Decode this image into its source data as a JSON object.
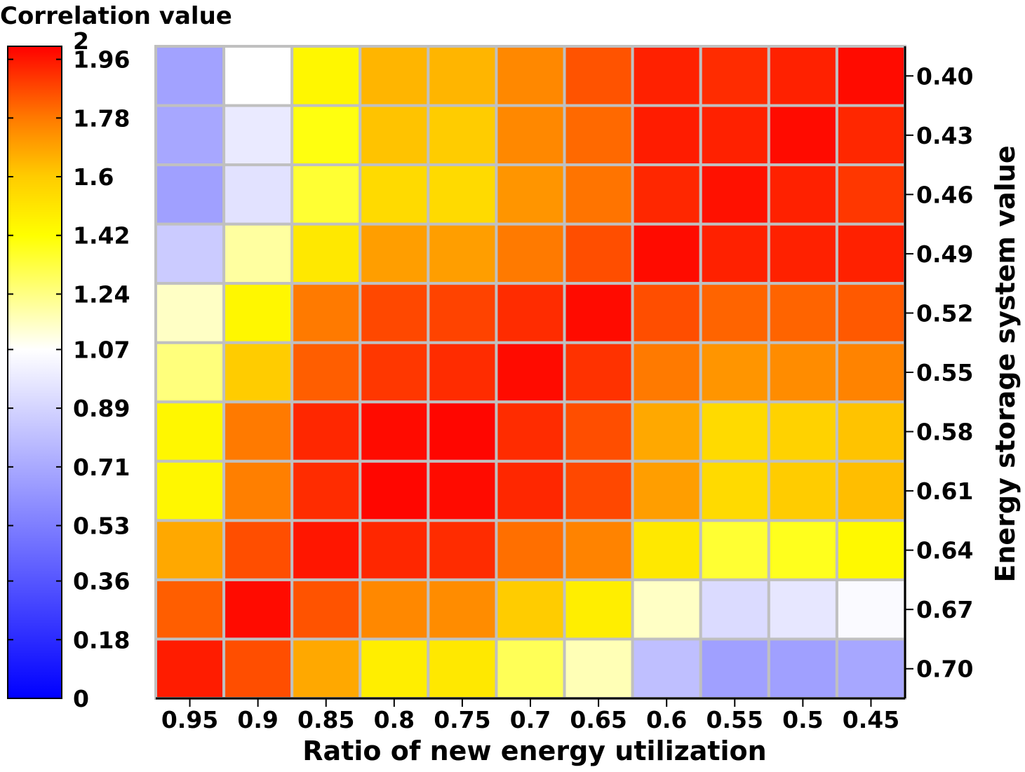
{
  "chart_data": {
    "type": "heatmap",
    "title": "",
    "colorbar_title": "Correlation value",
    "xlabel": "Ratio of new energy utilization",
    "ylabel": "Energy storage system value",
    "x_categories": [
      "0.95",
      "0.9",
      "0.85",
      "0.8",
      "0.75",
      "0.7",
      "0.65",
      "0.6",
      "0.55",
      "0.5",
      "0.45"
    ],
    "y_categories": [
      "0.40",
      "0.43",
      "0.46",
      "0.49",
      "0.52",
      "0.55",
      "0.58",
      "0.61",
      "0.64",
      "0.67",
      "0.70"
    ],
    "values": [
      [
        0.68,
        1.07,
        1.45,
        1.65,
        1.65,
        1.75,
        1.85,
        1.94,
        1.92,
        1.94,
        1.98
      ],
      [
        0.7,
        0.98,
        1.4,
        1.62,
        1.6,
        1.75,
        1.81,
        1.95,
        1.94,
        1.98,
        1.93
      ],
      [
        0.67,
        0.95,
        1.35,
        1.55,
        1.55,
        1.72,
        1.79,
        1.93,
        1.97,
        1.94,
        1.9
      ],
      [
        0.85,
        1.2,
        1.5,
        1.7,
        1.7,
        1.78,
        1.86,
        1.98,
        1.94,
        1.94,
        1.94
      ],
      [
        1.15,
        1.45,
        1.78,
        1.87,
        1.88,
        1.92,
        1.98,
        1.86,
        1.82,
        1.82,
        1.84
      ],
      [
        1.25,
        1.6,
        1.83,
        1.9,
        1.92,
        1.98,
        1.91,
        1.78,
        1.72,
        1.74,
        1.76
      ],
      [
        1.45,
        1.78,
        1.93,
        1.98,
        1.99,
        1.92,
        1.86,
        1.68,
        1.55,
        1.58,
        1.62
      ],
      [
        1.45,
        1.77,
        1.92,
        1.99,
        1.98,
        1.93,
        1.87,
        1.7,
        1.55,
        1.6,
        1.63
      ],
      [
        1.68,
        1.86,
        1.96,
        1.93,
        1.92,
        1.8,
        1.76,
        1.5,
        1.35,
        1.38,
        1.44
      ],
      [
        1.83,
        1.98,
        1.85,
        1.75,
        1.74,
        1.6,
        1.48,
        1.15,
        0.92,
        0.97,
        1.05
      ],
      [
        1.95,
        1.86,
        1.68,
        1.48,
        1.5,
        1.3,
        1.17,
        0.8,
        0.67,
        0.67,
        0.7
      ]
    ],
    "colorscale": {
      "min": 0,
      "max": 2,
      "stops": [
        {
          "value": 0,
          "color": "#0000ff"
        },
        {
          "value": 1.07,
          "color": "#ffffff"
        },
        {
          "value": 1.42,
          "color": "#ffff00"
        },
        {
          "value": 1.6,
          "color": "#ffcc00"
        },
        {
          "value": 1.78,
          "color": "#ff7a00"
        },
        {
          "value": 2,
          "color": "#ff0000"
        }
      ]
    },
    "colorbar_ticks": [
      "2",
      "1.96",
      "1.78",
      "1.6",
      "1.42",
      "1.24",
      "1.07",
      "0.89",
      "0.71",
      "0.53",
      "0.36",
      "0.18",
      "0"
    ],
    "colorbar_tick_values": [
      2,
      1.96,
      1.78,
      1.6,
      1.42,
      1.24,
      1.07,
      0.89,
      0.71,
      0.53,
      0.36,
      0.18,
      0
    ],
    "grid_color": "#c0c0c0",
    "grid": true,
    "legend_position": "left"
  }
}
